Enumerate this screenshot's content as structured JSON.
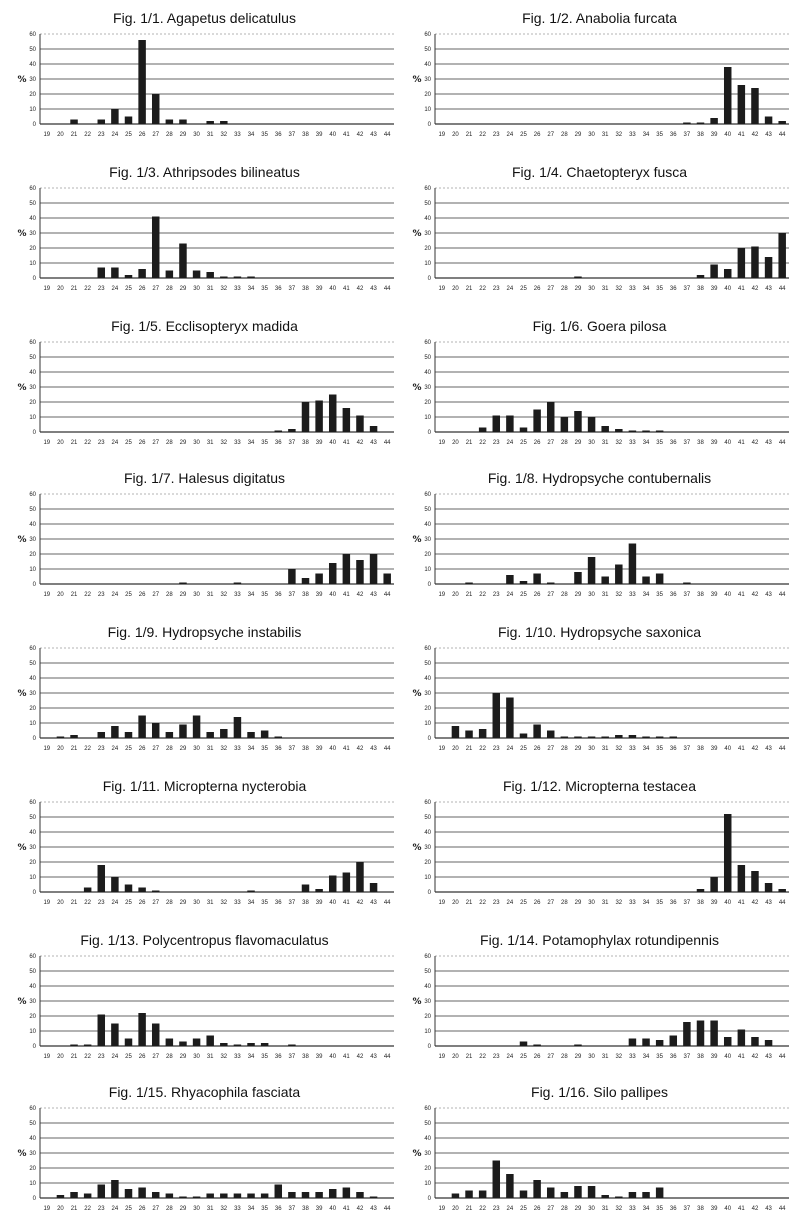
{
  "chart_data": [
    {
      "type": "bar",
      "title": "Fig. 1/1. Agapetus delicatulus",
      "ylabel": "%",
      "xlabel": "",
      "ylim": [
        0,
        60
      ],
      "yticks": [
        0,
        10,
        20,
        30,
        40,
        50,
        60
      ],
      "grid": "horizontal",
      "categories": [
        "19",
        "20",
        "21",
        "22",
        "23",
        "24",
        "25",
        "26",
        "27",
        "28",
        "29",
        "30",
        "31",
        "32",
        "33",
        "34",
        "35",
        "36",
        "37",
        "38",
        "39",
        "40",
        "41",
        "42",
        "43",
        "44"
      ],
      "values": [
        0,
        0,
        3,
        0,
        3,
        10,
        5,
        56,
        20,
        3,
        3,
        0,
        2,
        2,
        0,
        0,
        0,
        0,
        0,
        0,
        0,
        0,
        0,
        0,
        0,
        0
      ]
    },
    {
      "type": "bar",
      "title": "Fig. 1/2. Anabolia furcata",
      "ylabel": "%",
      "xlabel": "",
      "ylim": [
        0,
        60
      ],
      "yticks": [
        0,
        10,
        20,
        30,
        40,
        50,
        60
      ],
      "grid": "horizontal",
      "categories": [
        "19",
        "20",
        "21",
        "22",
        "23",
        "24",
        "25",
        "26",
        "27",
        "28",
        "29",
        "30",
        "31",
        "32",
        "33",
        "34",
        "35",
        "36",
        "37",
        "38",
        "39",
        "40",
        "41",
        "42",
        "43",
        "44"
      ],
      "values": [
        0,
        0,
        0,
        0,
        0,
        0,
        0,
        0,
        0,
        0,
        0,
        0,
        0,
        0,
        0,
        0,
        0,
        0,
        1,
        1,
        4,
        38,
        26,
        24,
        5,
        2
      ]
    },
    {
      "type": "bar",
      "title": "Fig. 1/3. Athripsodes bilineatus",
      "ylabel": "%",
      "xlabel": "",
      "ylim": [
        0,
        60
      ],
      "yticks": [
        0,
        10,
        20,
        30,
        40,
        50,
        60
      ],
      "grid": "horizontal",
      "categories": [
        "19",
        "20",
        "21",
        "22",
        "23",
        "24",
        "25",
        "26",
        "27",
        "28",
        "29",
        "30",
        "31",
        "32",
        "33",
        "34",
        "35",
        "36",
        "37",
        "38",
        "39",
        "40",
        "41",
        "42",
        "43",
        "44"
      ],
      "values": [
        0,
        0,
        0,
        0,
        7,
        7,
        2,
        6,
        41,
        5,
        23,
        5,
        4,
        1,
        1,
        1,
        0,
        0,
        0,
        0,
        0,
        0,
        0,
        0,
        0,
        0
      ]
    },
    {
      "type": "bar",
      "title": "Fig. 1/4. Chaetopteryx fusca",
      "ylabel": "%",
      "xlabel": "",
      "ylim": [
        0,
        60
      ],
      "yticks": [
        0,
        10,
        20,
        30,
        40,
        50,
        60
      ],
      "grid": "horizontal",
      "categories": [
        "19",
        "20",
        "21",
        "22",
        "23",
        "24",
        "25",
        "26",
        "27",
        "28",
        "29",
        "30",
        "31",
        "32",
        "33",
        "34",
        "35",
        "36",
        "37",
        "38",
        "39",
        "40",
        "41",
        "42",
        "43",
        "44"
      ],
      "values": [
        0,
        0,
        0,
        0,
        0,
        0,
        0,
        0,
        0,
        0,
        1,
        0,
        0,
        0,
        0,
        0,
        0,
        0,
        0,
        2,
        9,
        6,
        20,
        21,
        14,
        30
      ]
    },
    {
      "type": "bar",
      "title": "Fig. 1/5. Ecclisopteryx madida",
      "ylabel": "%",
      "xlabel": "",
      "ylim": [
        0,
        60
      ],
      "yticks": [
        0,
        10,
        20,
        30,
        40,
        50,
        60
      ],
      "grid": "horizontal",
      "categories": [
        "19",
        "20",
        "21",
        "22",
        "23",
        "24",
        "25",
        "26",
        "27",
        "28",
        "29",
        "30",
        "31",
        "32",
        "33",
        "34",
        "35",
        "36",
        "37",
        "38",
        "39",
        "40",
        "41",
        "42",
        "43",
        "44"
      ],
      "values": [
        0,
        0,
        0,
        0,
        0,
        0,
        0,
        0,
        0,
        0,
        0,
        0,
        0,
        0,
        0,
        0,
        0,
        1,
        2,
        20,
        21,
        25,
        16,
        11,
        4,
        0
      ]
    },
    {
      "type": "bar",
      "title": "Fig. 1/6. Goera pilosa",
      "ylabel": "%",
      "xlabel": "",
      "ylim": [
        0,
        60
      ],
      "yticks": [
        0,
        10,
        20,
        30,
        40,
        50,
        60
      ],
      "grid": "horizontal",
      "categories": [
        "19",
        "20",
        "21",
        "22",
        "23",
        "24",
        "25",
        "26",
        "27",
        "28",
        "29",
        "30",
        "31",
        "32",
        "33",
        "34",
        "35",
        "36",
        "37",
        "38",
        "39",
        "40",
        "41",
        "42",
        "43",
        "44"
      ],
      "values": [
        0,
        0,
        0,
        3,
        11,
        11,
        3,
        15,
        20,
        10,
        14,
        10,
        4,
        2,
        1,
        1,
        1,
        0,
        0,
        0,
        0,
        0,
        0,
        0,
        0,
        0
      ]
    },
    {
      "type": "bar",
      "title": "Fig. 1/7. Halesus digitatus",
      "ylabel": "%",
      "xlabel": "",
      "ylim": [
        0,
        60
      ],
      "yticks": [
        0,
        10,
        20,
        30,
        40,
        50,
        60
      ],
      "grid": "horizontal",
      "categories": [
        "19",
        "20",
        "21",
        "22",
        "23",
        "24",
        "25",
        "26",
        "27",
        "28",
        "29",
        "30",
        "31",
        "32",
        "33",
        "34",
        "35",
        "36",
        "37",
        "38",
        "39",
        "40",
        "41",
        "42",
        "43",
        "44"
      ],
      "values": [
        0,
        0,
        0,
        0,
        0,
        0,
        0,
        0,
        0,
        0,
        1,
        0,
        0,
        0,
        1,
        0,
        0,
        0,
        10,
        4,
        7,
        14,
        20,
        16,
        20,
        7
      ]
    },
    {
      "type": "bar",
      "title": "Fig. 1/8. Hydropsyche contubernalis",
      "ylabel": "%",
      "xlabel": "",
      "ylim": [
        0,
        60
      ],
      "yticks": [
        0,
        10,
        20,
        30,
        40,
        50,
        60
      ],
      "grid": "horizontal",
      "categories": [
        "19",
        "20",
        "21",
        "22",
        "23",
        "24",
        "25",
        "26",
        "27",
        "28",
        "29",
        "30",
        "31",
        "32",
        "33",
        "34",
        "35",
        "36",
        "37",
        "38",
        "39",
        "40",
        "41",
        "42",
        "43",
        "44"
      ],
      "values": [
        0,
        0,
        1,
        0,
        0,
        6,
        2,
        7,
        1,
        0,
        8,
        18,
        5,
        13,
        27,
        5,
        7,
        0,
        1,
        0,
        0,
        0,
        0,
        0,
        0,
        0
      ]
    },
    {
      "type": "bar",
      "title": "Fig. 1/9. Hydropsyche instabilis",
      "ylabel": "%",
      "xlabel": "",
      "ylim": [
        0,
        60
      ],
      "yticks": [
        0,
        10,
        20,
        30,
        40,
        50,
        60
      ],
      "grid": "horizontal",
      "categories": [
        "19",
        "20",
        "21",
        "22",
        "23",
        "24",
        "25",
        "26",
        "27",
        "28",
        "29",
        "30",
        "31",
        "32",
        "33",
        "34",
        "35",
        "36",
        "37",
        "38",
        "39",
        "40",
        "41",
        "42",
        "43",
        "44"
      ],
      "values": [
        0,
        1,
        2,
        0,
        4,
        8,
        4,
        15,
        10,
        4,
        9,
        15,
        4,
        6,
        14,
        4,
        5,
        1,
        0,
        0,
        0,
        0,
        0,
        0,
        0,
        0
      ]
    },
    {
      "type": "bar",
      "title": "Fig. 1/10. Hydropsyche saxonica",
      "ylabel": "%",
      "xlabel": "",
      "ylim": [
        0,
        60
      ],
      "yticks": [
        0,
        10,
        20,
        30,
        40,
        50,
        60
      ],
      "grid": "horizontal",
      "categories": [
        "19",
        "20",
        "21",
        "22",
        "23",
        "24",
        "25",
        "26",
        "27",
        "28",
        "29",
        "30",
        "31",
        "32",
        "33",
        "34",
        "35",
        "36",
        "37",
        "38",
        "39",
        "40",
        "41",
        "42",
        "43",
        "44"
      ],
      "values": [
        0,
        8,
        5,
        6,
        30,
        27,
        3,
        9,
        5,
        1,
        1,
        1,
        1,
        2,
        2,
        1,
        1,
        1,
        0,
        0,
        0,
        0,
        0,
        0,
        0,
        0
      ]
    },
    {
      "type": "bar",
      "title": "Fig. 1/11. Micropterna nycterobia",
      "ylabel": "%",
      "xlabel": "",
      "ylim": [
        0,
        60
      ],
      "yticks": [
        0,
        10,
        20,
        30,
        40,
        50,
        60
      ],
      "grid": "horizontal",
      "categories": [
        "19",
        "20",
        "21",
        "22",
        "23",
        "24",
        "25",
        "26",
        "27",
        "28",
        "29",
        "30",
        "31",
        "32",
        "33",
        "34",
        "35",
        "36",
        "37",
        "38",
        "39",
        "40",
        "41",
        "42",
        "43",
        "44"
      ],
      "values": [
        0,
        0,
        0,
        3,
        18,
        10,
        5,
        3,
        1,
        0,
        0,
        0,
        0,
        0,
        0,
        1,
        0,
        0,
        0,
        5,
        2,
        11,
        13,
        20,
        6,
        0
      ]
    },
    {
      "type": "bar",
      "title": "Fig. 1/12. Micropterna testacea",
      "ylabel": "%",
      "xlabel": "",
      "ylim": [
        0,
        60
      ],
      "yticks": [
        0,
        10,
        20,
        30,
        40,
        50,
        60
      ],
      "grid": "horizontal",
      "categories": [
        "19",
        "20",
        "21",
        "22",
        "23",
        "24",
        "25",
        "26",
        "27",
        "28",
        "29",
        "30",
        "31",
        "32",
        "33",
        "34",
        "35",
        "36",
        "37",
        "38",
        "39",
        "40",
        "41",
        "42",
        "43",
        "44"
      ],
      "values": [
        0,
        0,
        0,
        0,
        0,
        0,
        0,
        0,
        0,
        0,
        0,
        0,
        0,
        0,
        0,
        0,
        0,
        0,
        0,
        2,
        10,
        52,
        18,
        14,
        6,
        2
      ]
    },
    {
      "type": "bar",
      "title": "Fig. 1/13. Polycentropus flavomaculatus",
      "ylabel": "%",
      "xlabel": "",
      "ylim": [
        0,
        60
      ],
      "yticks": [
        0,
        10,
        20,
        30,
        40,
        50,
        60
      ],
      "grid": "horizontal",
      "categories": [
        "19",
        "20",
        "21",
        "22",
        "23",
        "24",
        "25",
        "26",
        "27",
        "28",
        "29",
        "30",
        "31",
        "32",
        "33",
        "34",
        "35",
        "36",
        "37",
        "38",
        "39",
        "40",
        "41",
        "42",
        "43",
        "44"
      ],
      "values": [
        0,
        0,
        1,
        1,
        21,
        15,
        5,
        22,
        15,
        5,
        3,
        5,
        7,
        2,
        1,
        2,
        2,
        0,
        1,
        0,
        0,
        0,
        0,
        0,
        0,
        0
      ]
    },
    {
      "type": "bar",
      "title": "Fig. 1/14. Potamophylax rotundipennis",
      "ylabel": "%",
      "xlabel": "",
      "ylim": [
        0,
        60
      ],
      "yticks": [
        0,
        10,
        20,
        30,
        40,
        50,
        60
      ],
      "grid": "horizontal",
      "categories": [
        "19",
        "20",
        "21",
        "22",
        "23",
        "24",
        "25",
        "26",
        "27",
        "28",
        "29",
        "30",
        "31",
        "32",
        "33",
        "34",
        "35",
        "36",
        "37",
        "38",
        "39",
        "40",
        "41",
        "42",
        "43",
        "44"
      ],
      "values": [
        0,
        0,
        0,
        0,
        0,
        0,
        3,
        1,
        0,
        0,
        1,
        0,
        0,
        0,
        5,
        5,
        4,
        7,
        16,
        17,
        17,
        6,
        11,
        6,
        4,
        0
      ]
    },
    {
      "type": "bar",
      "title": "Fig. 1/15. Rhyacophila fasciata",
      "ylabel": "%",
      "xlabel": "",
      "ylim": [
        0,
        60
      ],
      "yticks": [
        0,
        10,
        20,
        30,
        40,
        50,
        60
      ],
      "grid": "horizontal",
      "categories": [
        "19",
        "20",
        "21",
        "22",
        "23",
        "24",
        "25",
        "26",
        "27",
        "28",
        "29",
        "30",
        "31",
        "32",
        "33",
        "34",
        "35",
        "36",
        "37",
        "38",
        "39",
        "40",
        "41",
        "42",
        "43",
        "44"
      ],
      "values": [
        0,
        2,
        4,
        3,
        9,
        12,
        6,
        7,
        4,
        3,
        1,
        1,
        3,
        3,
        3,
        3,
        3,
        9,
        4,
        4,
        4,
        6,
        7,
        4,
        1,
        0
      ]
    },
    {
      "type": "bar",
      "title": "Fig. 1/16. Silo pallipes",
      "ylabel": "%",
      "xlabel": "",
      "ylim": [
        0,
        60
      ],
      "yticks": [
        0,
        10,
        20,
        30,
        40,
        50,
        60
      ],
      "grid": "horizontal",
      "categories": [
        "19",
        "20",
        "21",
        "22",
        "23",
        "24",
        "25",
        "26",
        "27",
        "28",
        "29",
        "30",
        "31",
        "32",
        "33",
        "34",
        "35",
        "36",
        "37",
        "38",
        "39",
        "40",
        "41",
        "42",
        "43",
        "44"
      ],
      "values": [
        0,
        3,
        5,
        5,
        25,
        16,
        5,
        12,
        7,
        4,
        8,
        8,
        2,
        1,
        4,
        4,
        7,
        0,
        0,
        0,
        0,
        0,
        0,
        0,
        0,
        0
      ]
    }
  ]
}
